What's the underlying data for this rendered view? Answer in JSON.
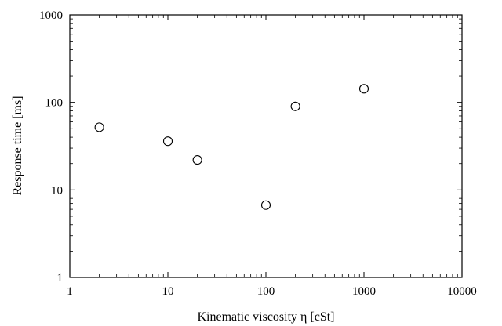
{
  "chart_data": {
    "type": "scatter",
    "title": "",
    "xlabel": "Kinematic viscosity η [cSt]",
    "ylabel": "Response time [ms]",
    "x_scale": "log",
    "y_scale": "log",
    "xlim": [
      1,
      10000
    ],
    "ylim": [
      1,
      1000
    ],
    "x_tick_labels": [
      "1",
      "10",
      "100",
      "1000",
      "10000"
    ],
    "y_tick_labels": [
      "1",
      "10",
      "100",
      "1000"
    ],
    "grid": false,
    "legend": "none",
    "marker": "open-circle",
    "series": [
      {
        "x": [
          2,
          10,
          20,
          100,
          200,
          1000
        ],
        "y": [
          52,
          36,
          22,
          6.7,
          90,
          143
        ]
      }
    ]
  }
}
